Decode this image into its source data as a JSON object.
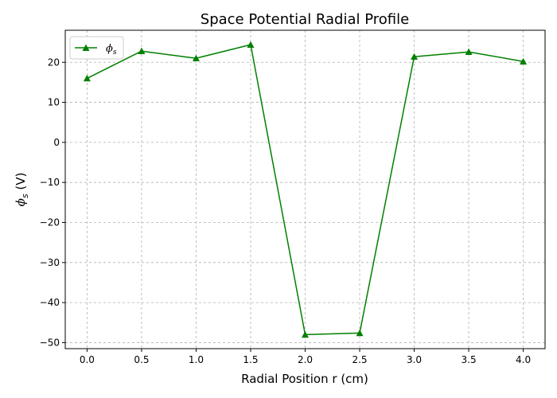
{
  "chart_data": {
    "type": "line",
    "title": "Space Potential Radial Profile",
    "xlabel": "Radial Position r (cm)",
    "ylabel_symbol": "ϕ",
    "ylabel_subscript": "s",
    "ylabel_unit": " (V)",
    "xlim": [
      -0.2,
      4.2
    ],
    "ylim": [
      -51.5,
      28
    ],
    "x_ticks": [
      0.0,
      0.5,
      1.0,
      1.5,
      2.0,
      2.5,
      3.0,
      3.5,
      4.0
    ],
    "x_tick_labels": [
      "0.0",
      "0.5",
      "1.0",
      "1.5",
      "2.0",
      "2.5",
      "3.0",
      "3.5",
      "4.0"
    ],
    "y_ticks": [
      -50,
      -40,
      -30,
      -20,
      -10,
      0,
      10,
      20
    ],
    "y_tick_labels": [
      "−50",
      "−40",
      "−30",
      "−20",
      "−10",
      "0",
      "10",
      "20"
    ],
    "grid": true,
    "legend_position": "top-left",
    "series": [
      {
        "name_symbol": "ϕ",
        "name_subscript": "s",
        "color": "#008000",
        "marker": "triangle",
        "x": [
          0.0,
          0.5,
          1.0,
          1.5,
          2.0,
          2.5,
          3.0,
          3.5,
          4.0
        ],
        "y": [
          16.0,
          22.8,
          21.0,
          24.4,
          -48.0,
          -47.6,
          21.4,
          22.6,
          20.2
        ]
      }
    ]
  }
}
